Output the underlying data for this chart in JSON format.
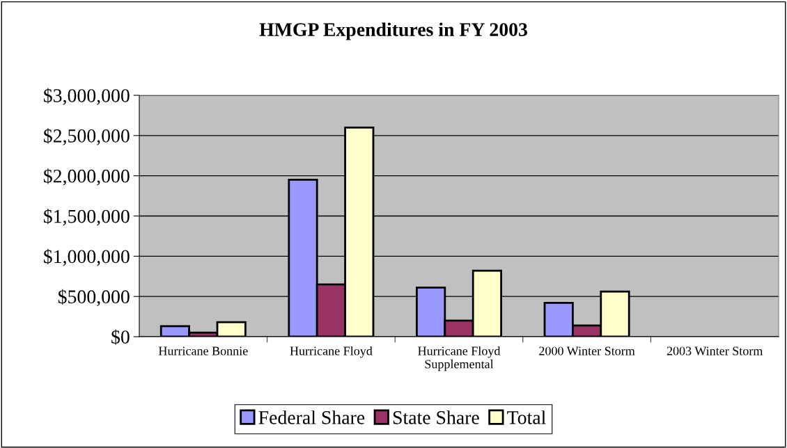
{
  "chart_data": {
    "type": "bar",
    "title": "HMGP Expenditures in FY 2003",
    "categories": [
      "Hurricane Bonnie",
      "Hurricane Floyd",
      "Hurricane Floyd\nSupplemental",
      "2000 Winter Storm",
      "2003 Winter Storm"
    ],
    "series": [
      {
        "name": "Federal Share",
        "color": "#9999ff",
        "values": [
          130000,
          1950000,
          610000,
          420000,
          null
        ]
      },
      {
        "name": "State Share",
        "color": "#993366",
        "values": [
          50000,
          650000,
          200000,
          140000,
          null
        ]
      },
      {
        "name": "Total",
        "color": "#ffffcc",
        "values": [
          180000,
          2600000,
          820000,
          560000,
          null
        ]
      }
    ],
    "ylim": [
      0,
      3000000
    ],
    "yticks": [
      {
        "value": 0,
        "label": "$0"
      },
      {
        "value": 500000,
        "label": "$500,000"
      },
      {
        "value": 1000000,
        "label": "$1,000,000"
      },
      {
        "value": 1500000,
        "label": "$1,500,000"
      },
      {
        "value": 2000000,
        "label": "$2,000,000"
      },
      {
        "value": 2500000,
        "label": "$2,500,000"
      },
      {
        "value": 3000000,
        "label": "$3,000,000"
      }
    ],
    "grid": "y",
    "legend": "bottom"
  }
}
